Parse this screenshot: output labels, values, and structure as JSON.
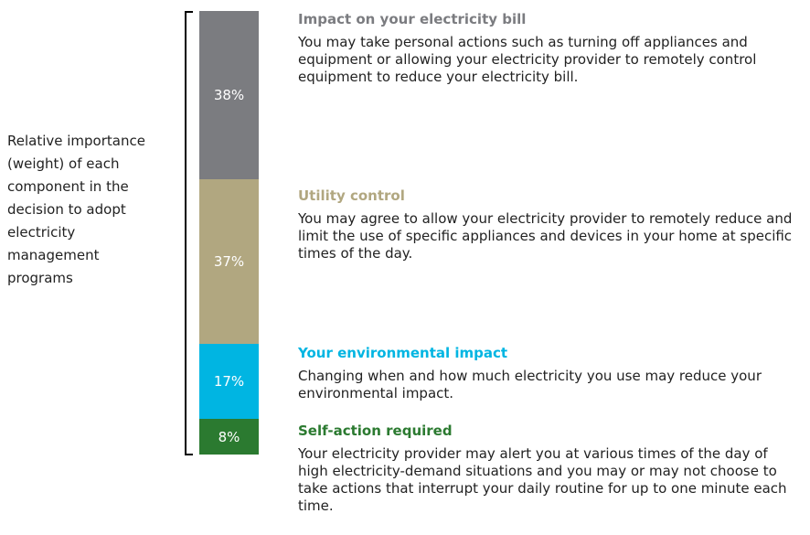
{
  "chart_data": {
    "type": "stacked_bar",
    "label": "Relative importance (weight) of each component in the decision to adopt electricity management programs",
    "ylim": [
      0,
      100
    ],
    "series": [
      {
        "name": "Impact on your electricity bill",
        "color": "#7b7c80",
        "values": [
          38
        ],
        "value_labels": [
          "38%"
        ],
        "description": "You may take personal actions such as turning off appliances and equipment or allowing your electricity provider to remotely control equipment to reduce your electricity bill."
      },
      {
        "name": "Utility control",
        "color": "#b1a780",
        "values": [
          37
        ],
        "value_labels": [
          "37%"
        ],
        "description": "You may agree to allow your electricity provider to remotely reduce and limit the use of specific appliances and devices in your home at specific times of the day."
      },
      {
        "name": "Your environmental impact",
        "color": "#00b5e2",
        "values": [
          17
        ],
        "value_labels": [
          "17%"
        ],
        "description": "Changing when and how much electricity you use may reduce your environmental impact."
      },
      {
        "name": "Self-action required",
        "color": "#2b7a30",
        "values": [
          8
        ],
        "value_labels": [
          "8%"
        ],
        "description": "Your electricity provider may alert you at various times of the day of high electricity-demand situations and you may or may not choose to take actions that interrupt your daily routine for up to one minute each time."
      }
    ]
  }
}
